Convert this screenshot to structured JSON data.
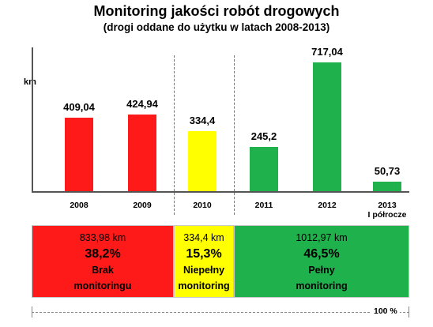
{
  "chart_data": {
    "type": "bar",
    "title": "Monitoring jakości robót drogowych",
    "subtitle": "(drogi oddane do użytku w latach 2008-2013)",
    "ylabel": "km",
    "xlabel": "",
    "categories": [
      "2008",
      "2009",
      "2010",
      "2011",
      "2012",
      "2013\nI półrocze"
    ],
    "values": [
      409.04,
      424.94,
      334.4,
      245.2,
      717.04,
      50.73
    ],
    "value_labels": [
      "409,04",
      "424,94",
      "334,4",
      "245,2",
      "717,04",
      "50,73"
    ],
    "ylim": [
      0,
      800
    ],
    "grid": false,
    "colors": [
      "#ff1a1a",
      "#ff1a1a",
      "#ffff00",
      "#1fb14c",
      "#1fb14c",
      "#1fb14c"
    ]
  },
  "summary": {
    "segments": [
      {
        "km": "833,98 km",
        "percent": "38,2%",
        "label_line1": "Brak",
        "label_line2": "monitoringu",
        "share": 38.2,
        "color": "#ff1a1a"
      },
      {
        "km": "334,4 km",
        "percent": "15,3%",
        "label_line1": "Niepełny",
        "label_line2": "monitoring",
        "share": 15.3,
        "color": "#ffff00"
      },
      {
        "km": "1012,97 km",
        "percent": "46,5%",
        "label_line1": "Pełny",
        "label_line2": "monitoring",
        "share": 46.5,
        "color": "#1fb14c"
      }
    ],
    "total_label": "100 %"
  }
}
